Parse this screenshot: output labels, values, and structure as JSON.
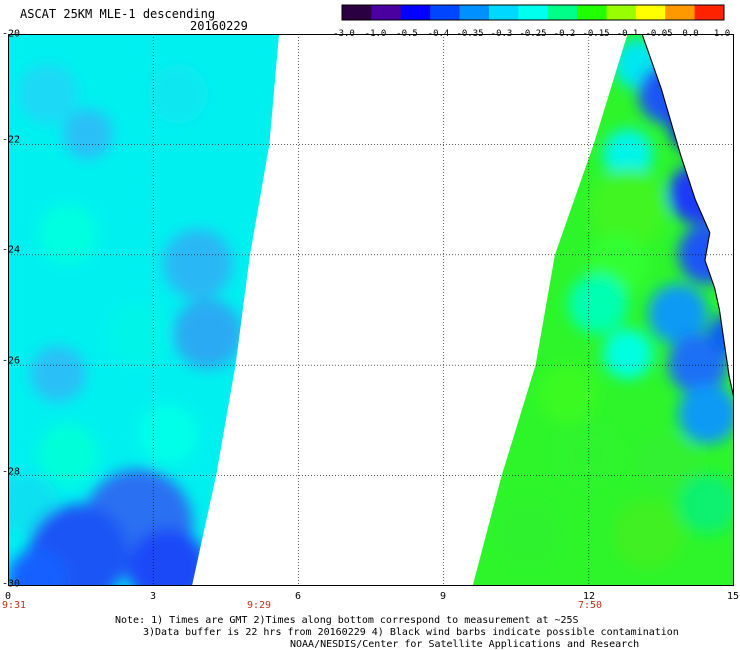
{
  "header": {
    "title": "ASCAT 25KM MLE-1 descending",
    "date": "20160229"
  },
  "colorbar": {
    "ticks": [
      "-3.0",
      "-1.0",
      "-0.5",
      "-0.4",
      "-0.35",
      "-0.3",
      "-0.25",
      "-0.2",
      "-0.15",
      "-0.1",
      "-0.05",
      "0.0",
      "1.0"
    ],
    "colors": [
      "#2a0040",
      "#4a00a0",
      "#0000ff",
      "#0046ff",
      "#0090ff",
      "#00d8ff",
      "#00ffee",
      "#00ff88",
      "#22ff00",
      "#99ff00",
      "#ffff00",
      "#ff9900",
      "#ff2200"
    ]
  },
  "time_labels": {
    "left": "9:31",
    "middle": "9:29",
    "right": "7:50"
  },
  "notes": [
    "Note: 1) Times are GMT 2)Times along bottom correspond to measurement at ~25S",
    "3)Data buffer is 22 hrs from 20160229 4) Black wind barbs indicate possible contamination",
    "NOAA/NESDIS/Center for Satellite Applications and Research"
  ],
  "chart_data": {
    "type": "heatmap",
    "title": "ASCAT 25KM MLE-1 descending",
    "xlabel": "",
    "ylabel": "",
    "x_ticks": [
      0,
      3,
      6,
      9,
      12,
      15
    ],
    "y_ticks": [
      -20,
      -22,
      -24,
      -26,
      -28,
      -30
    ],
    "x_tick_labels": [
      "0",
      "3",
      "6",
      "9",
      "12",
      "15"
    ],
    "y_tick_labels": [
      "-20",
      "-22",
      "-24",
      "-26",
      "-28",
      "-30"
    ],
    "xlim": [
      0,
      15
    ],
    "ylim": [
      -30,
      -20
    ],
    "grid": true,
    "colorbar_range": [
      -3.0,
      1.0
    ],
    "swaths": [
      {
        "name": "west swath",
        "west_edge_lon": 0,
        "east_edge_lon_at_lat": [
          [
            -20,
            5.6
          ],
          [
            -22,
            5.4
          ],
          [
            -24,
            5.0
          ],
          [
            -26,
            4.7
          ],
          [
            -28,
            4.3
          ],
          [
            -30,
            3.8
          ]
        ],
        "dominant_values": "-0.3 to -0.25 (cyan), lower values near -0.35 in SW corner"
      },
      {
        "name": "east swath",
        "west_edge_lon_at_lat": [
          [
            -20,
            12.8
          ],
          [
            -22,
            12.1
          ],
          [
            -24,
            11.3
          ],
          [
            -26,
            10.9
          ],
          [
            -28,
            10.2
          ],
          [
            -30,
            9.6
          ]
        ],
        "east_edge_lon": 15,
        "dominant_values": "-0.2 to -0.15 (green) offshore, -0.4 to -0.5 (blue) along coast"
      }
    ],
    "coastline": [
      [
        13.1,
        -20.0
      ],
      [
        13.3,
        -20.5
      ],
      [
        13.5,
        -21.0
      ],
      [
        13.7,
        -21.6
      ],
      [
        13.9,
        -22.2
      ],
      [
        14.2,
        -23.0
      ],
      [
        14.5,
        -23.6
      ],
      [
        14.4,
        -24.1
      ],
      [
        14.6,
        -24.6
      ],
      [
        14.7,
        -25.0
      ],
      [
        14.8,
        -25.6
      ],
      [
        14.9,
        -26.2
      ],
      [
        15.0,
        -26.6
      ]
    ]
  }
}
